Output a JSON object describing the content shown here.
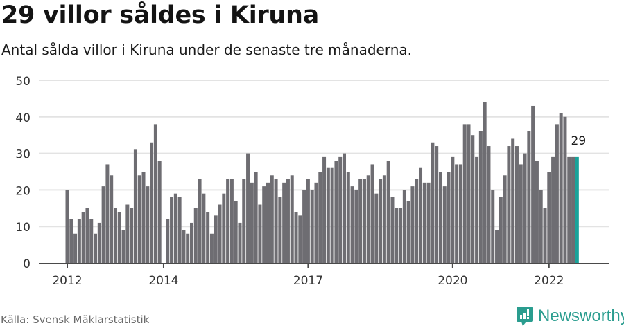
{
  "header": {
    "title": "29 villor såldes i Kiruna",
    "subtitle": "Antal sålda villor i Kiruna under de senaste tre månaderna."
  },
  "footer": {
    "source": "Källa: Svensk Mäklarstatistik",
    "brand": "Newsworthy",
    "brand_icon": "bar-chart-speech-bubble-icon"
  },
  "colors": {
    "bar": "#6e6d72",
    "highlight": "#1aa39a",
    "grid": "#e3e3e3",
    "axis": "#4a4a4a",
    "brand": "#2a9d8f"
  },
  "chart_data": {
    "type": "bar",
    "title": "29 villor såldes i Kiruna",
    "subtitle": "Antal sålda villor i Kiruna under de senaste tre månaderna.",
    "xlabel": "",
    "ylabel": "",
    "ylim": [
      0,
      50
    ],
    "yticks": [
      0,
      10,
      20,
      30,
      40,
      50
    ],
    "xticks": [
      {
        "label": "2012",
        "index": 0
      },
      {
        "label": "2014",
        "index": 24
      },
      {
        "label": "2017",
        "index": 60
      },
      {
        "label": "2020",
        "index": 96
      },
      {
        "label": "2022",
        "index": 120
      }
    ],
    "grid": true,
    "legend": null,
    "start": "2012-01",
    "frequency": "monthly",
    "highlight_last": true,
    "annotation": {
      "text": "29",
      "index": 127
    },
    "values": [
      20,
      12,
      8,
      12,
      14,
      15,
      12,
      8,
      11,
      21,
      27,
      24,
      15,
      14,
      9,
      16,
      15,
      31,
      24,
      25,
      21,
      33,
      38,
      28,
      0,
      12,
      18,
      19,
      18,
      9,
      8,
      11,
      15,
      23,
      19,
      14,
      8,
      13,
      16,
      19,
      23,
      23,
      17,
      11,
      23,
      30,
      22,
      25,
      16,
      21,
      22,
      24,
      23,
      18,
      22,
      23,
      24,
      14,
      13,
      20,
      23,
      20,
      22,
      25,
      29,
      26,
      26,
      28,
      29,
      30,
      25,
      21,
      20,
      23,
      23,
      24,
      27,
      19,
      23,
      24,
      28,
      18,
      15,
      15,
      20,
      17,
      21,
      23,
      26,
      22,
      22,
      33,
      32,
      25,
      21,
      25,
      29,
      27,
      27,
      38,
      38,
      35,
      29,
      36,
      44,
      32,
      20,
      9,
      18,
      24,
      32,
      34,
      32,
      27,
      30,
      36,
      43,
      28,
      20,
      15,
      25,
      29,
      38,
      41,
      40,
      29,
      29,
      29
    ]
  }
}
